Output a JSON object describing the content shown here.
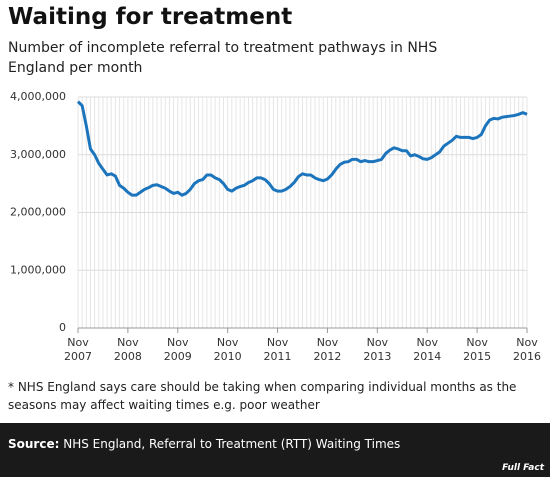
{
  "chart_data": {
    "type": "line",
    "title": "Waiting for treatment",
    "subtitle": "Number of incomplete referral to treatment pathways in NHS England per month",
    "categories": [
      "Nov 2007",
      null,
      null,
      null,
      null,
      null,
      null,
      null,
      null,
      null,
      null,
      null,
      "Nov 2008",
      null,
      null,
      null,
      null,
      null,
      null,
      null,
      null,
      null,
      null,
      null,
      "Nov 2009",
      null,
      null,
      null,
      null,
      null,
      null,
      null,
      null,
      null,
      null,
      null,
      "Nov 2010",
      null,
      null,
      null,
      null,
      null,
      null,
      null,
      null,
      null,
      null,
      null,
      "Nov 2011",
      null,
      null,
      null,
      null,
      null,
      null,
      null,
      null,
      null,
      null,
      null,
      "Nov 2012",
      null,
      null,
      null,
      null,
      null,
      null,
      null,
      null,
      null,
      null,
      null,
      "Nov 2013",
      null,
      null,
      null,
      null,
      null,
      null,
      null,
      null,
      null,
      null,
      null,
      "Nov 2014",
      null,
      null,
      null,
      null,
      null,
      null,
      null,
      null,
      null,
      null,
      null,
      "Nov 2015",
      null,
      null,
      null,
      null,
      null,
      null,
      null,
      null,
      null,
      null,
      null,
      "Nov 2016"
    ],
    "values": [
      3920000,
      3850000,
      3500000,
      3100000,
      3000000,
      2850000,
      2750000,
      2650000,
      2670000,
      2630000,
      2470000,
      2420000,
      2350000,
      2300000,
      2300000,
      2350000,
      2400000,
      2430000,
      2470000,
      2480000,
      2450000,
      2420000,
      2370000,
      2330000,
      2350000,
      2300000,
      2330000,
      2400000,
      2500000,
      2550000,
      2570000,
      2650000,
      2650000,
      2600000,
      2570000,
      2500000,
      2400000,
      2370000,
      2420000,
      2450000,
      2470000,
      2520000,
      2550000,
      2600000,
      2600000,
      2570000,
      2500000,
      2400000,
      2370000,
      2370000,
      2400000,
      2450000,
      2520000,
      2620000,
      2670000,
      2650000,
      2650000,
      2600000,
      2570000,
      2550000,
      2580000,
      2650000,
      2750000,
      2830000,
      2870000,
      2880000,
      2920000,
      2920000,
      2880000,
      2900000,
      2880000,
      2880000,
      2900000,
      2920000,
      3020000,
      3080000,
      3120000,
      3100000,
      3070000,
      3070000,
      2980000,
      3000000,
      2970000,
      2930000,
      2920000,
      2950000,
      3000000,
      3050000,
      3150000,
      3200000,
      3250000,
      3320000,
      3300000,
      3300000,
      3300000,
      3280000,
      3300000,
      3350000,
      3500000,
      3600000,
      3630000,
      3620000,
      3650000,
      3660000,
      3670000,
      3680000,
      3700000,
      3730000,
      3700000
    ],
    "color": "#1c75bc",
    "ylim": [
      0,
      4000000
    ],
    "yticks": [
      0,
      {
        "value": 1000000,
        "label": "1,000,000"
      },
      {
        "value": 2000000,
        "label": "2,000,000"
      },
      {
        "value": 3000000,
        "label": "3,000,000"
      },
      {
        "value": 4000000,
        "label": "4,000,000"
      }
    ],
    "grid": true
  },
  "footnote": "* NHS England says care should be taking when comparing individual months as the seasons may affect waiting times e.g. poor weather",
  "source": {
    "label": "Source:",
    "text": "NHS England, Referral to Treatment (RTT) Waiting Times"
  },
  "logo": "Full Fact"
}
